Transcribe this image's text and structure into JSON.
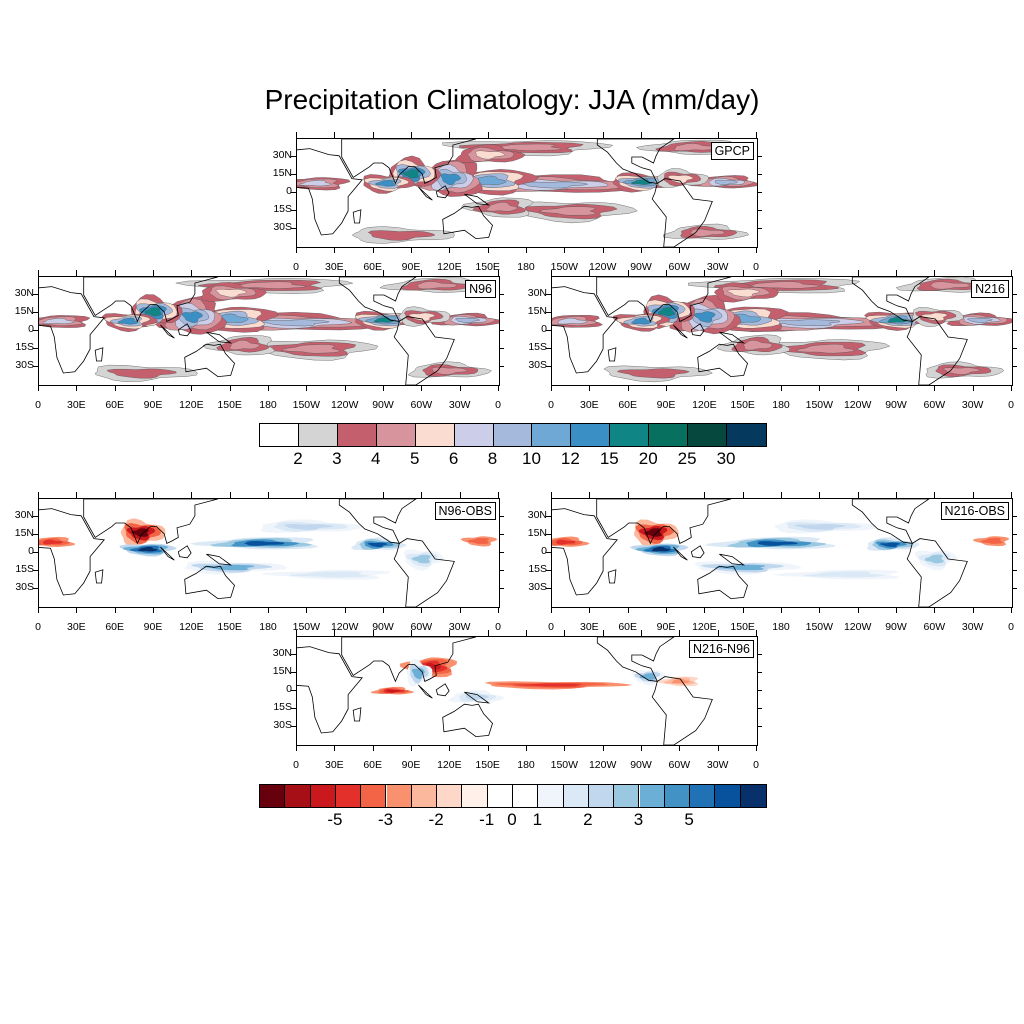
{
  "title": "Precipitation Climatology: JJA (mm/day)",
  "lat_labels": [
    "30N",
    "15N",
    "0",
    "15S",
    "30S"
  ],
  "lon_labels": [
    "0",
    "30E",
    "60E",
    "90E",
    "120E",
    "150E",
    "180",
    "150W",
    "120W",
    "90W",
    "60W",
    "30W",
    "0"
  ],
  "panels": [
    {
      "name": "GPCP",
      "kind": "abs"
    },
    {
      "name": "N96",
      "kind": "abs"
    },
    {
      "name": "N216",
      "kind": "abs"
    },
    {
      "name": "N96-OBS",
      "kind": "diff"
    },
    {
      "name": "N216-OBS",
      "kind": "diff"
    },
    {
      "name": "N216-N96",
      "kind": "diff"
    }
  ],
  "colorbar_abs": {
    "labels": [
      "2",
      "3",
      "4",
      "5",
      "6",
      "8",
      "10",
      "12",
      "15",
      "20",
      "25",
      "30"
    ],
    "colors": [
      "#ffffff",
      "#d4d4d4",
      "#c4606e",
      "#d8949c",
      "#fbdcd0",
      "#cccde8",
      "#a4b9dc",
      "#6fa8d4",
      "#3a8fc4",
      "#0f8585",
      "#07705e",
      "#06483e",
      "#053a5e"
    ]
  },
  "colorbar_diff": {
    "labels": [
      "-5",
      "-3",
      "-2",
      "-1",
      "0",
      "1",
      "2",
      "3",
      "5"
    ],
    "colors": [
      "#67000d",
      "#a50f15",
      "#cb181d",
      "#e3302a",
      "#f26445",
      "#f9916e",
      "#fcb89c",
      "#fdd7c7",
      "#fff0ea",
      "#ffffff",
      "#ffffff",
      "#f0f5fb",
      "#dbe8f5",
      "#c0d7ee",
      "#9ac8e0",
      "#6baed6",
      "#4292c6",
      "#2171b5",
      "#08519c",
      "#08306b"
    ]
  }
}
